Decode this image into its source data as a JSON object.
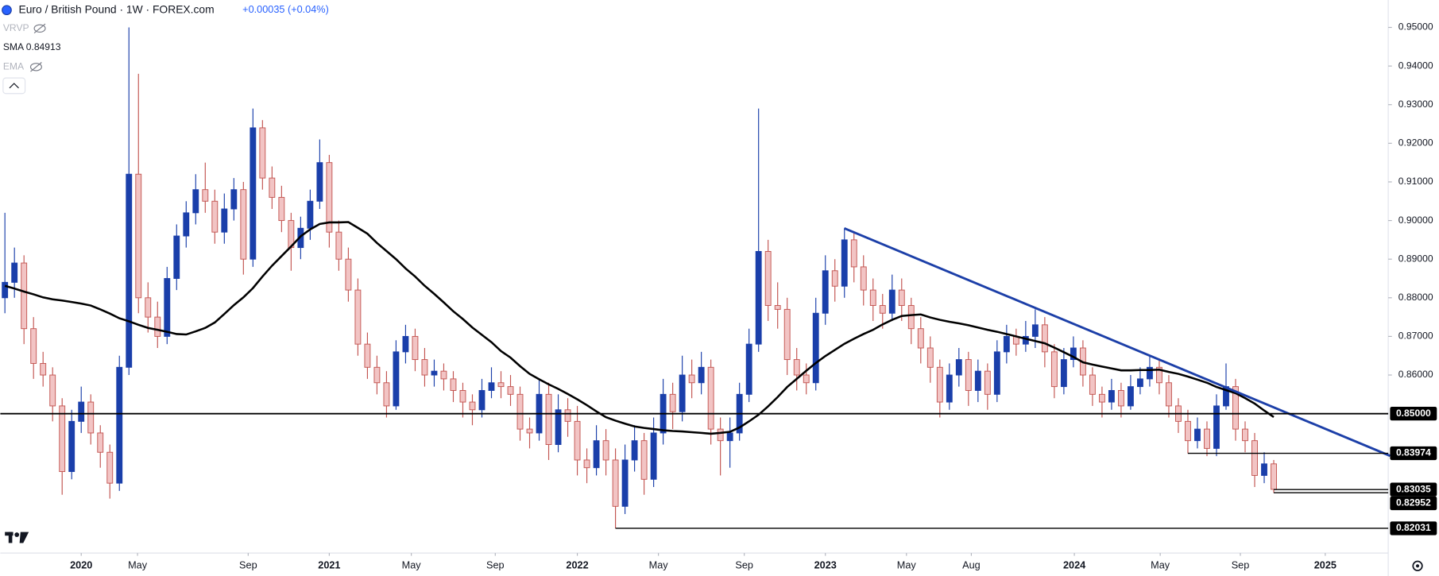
{
  "chart_data": {
    "type": "candlestick",
    "title": "Euro / British Pound · 1W · FOREX.com",
    "change": "+0.00035 (+0.04%)",
    "indicators": [
      "VRVP",
      "EMA"
    ],
    "up_color": "#1a3faa",
    "down_color": "#c25450",
    "sma": {
      "name": "SMA",
      "color": "#000000",
      "values": [
        0.8831,
        0.8824,
        0.8816,
        0.8809,
        0.8801,
        0.8796,
        0.8793,
        0.8789,
        0.8785,
        0.878,
        0.877,
        0.8759,
        0.8747,
        0.8739,
        0.873,
        0.8722,
        0.8717,
        0.8712,
        0.8706,
        0.8705,
        0.8713,
        0.8722,
        0.8736,
        0.8758,
        0.8781,
        0.8801,
        0.8825,
        0.8855,
        0.8883,
        0.8908,
        0.8933,
        0.8959,
        0.8977,
        0.8991,
        0.8995,
        0.8995,
        0.8996,
        0.8981,
        0.8966,
        0.8942,
        0.8921,
        0.89,
        0.8876,
        0.8855,
        0.8831,
        0.881,
        0.8788,
        0.8765,
        0.8745,
        0.8723,
        0.8704,
        0.8685,
        0.8662,
        0.8645,
        0.8623,
        0.8603,
        0.8589,
        0.8576,
        0.8564,
        0.8551,
        0.8537,
        0.8522,
        0.8506,
        0.8491,
        0.8482,
        0.8474,
        0.8467,
        0.8463,
        0.846,
        0.8457,
        0.8455,
        0.8454,
        0.8452,
        0.845,
        0.8448,
        0.845,
        0.8453,
        0.8464,
        0.848,
        0.8497,
        0.8519,
        0.8543,
        0.8569,
        0.859,
        0.8611,
        0.8631,
        0.8649,
        0.8665,
        0.8681,
        0.8694,
        0.8706,
        0.8717,
        0.8731,
        0.8743,
        0.8753,
        0.8755,
        0.8757,
        0.8749,
        0.8743,
        0.8738,
        0.8734,
        0.8729,
        0.8723,
        0.8717,
        0.8712,
        0.8706,
        0.87,
        0.8694,
        0.8688,
        0.8682,
        0.8671,
        0.8659,
        0.8647,
        0.8633,
        0.8627,
        0.8622,
        0.8617,
        0.8612,
        0.8612,
        0.8613,
        0.8613,
        0.8614,
        0.8608,
        0.8603,
        0.8596,
        0.8588,
        0.858,
        0.8569,
        0.8561,
        0.8553,
        0.854,
        0.8526,
        0.8508,
        0.84913
      ]
    },
    "candles": [
      [
        0.88,
        0.902,
        0.876,
        0.884
      ],
      [
        0.884,
        0.893,
        0.88,
        0.889
      ],
      [
        0.889,
        0.891,
        0.868,
        0.872
      ],
      [
        0.872,
        0.875,
        0.859,
        0.863
      ],
      [
        0.863,
        0.866,
        0.857,
        0.86
      ],
      [
        0.86,
        0.862,
        0.848,
        0.852
      ],
      [
        0.852,
        0.854,
        0.829,
        0.835
      ],
      [
        0.835,
        0.851,
        0.833,
        0.848
      ],
      [
        0.848,
        0.857,
        0.845,
        0.853
      ],
      [
        0.853,
        0.855,
        0.842,
        0.845
      ],
      [
        0.845,
        0.847,
        0.836,
        0.84
      ],
      [
        0.84,
        0.842,
        0.828,
        0.832
      ],
      [
        0.832,
        0.865,
        0.83,
        0.862
      ],
      [
        0.862,
        0.95,
        0.86,
        0.912
      ],
      [
        0.912,
        0.938,
        0.876,
        0.88
      ],
      [
        0.88,
        0.884,
        0.871,
        0.875
      ],
      [
        0.875,
        0.879,
        0.867,
        0.87
      ],
      [
        0.87,
        0.888,
        0.868,
        0.885
      ],
      [
        0.885,
        0.899,
        0.882,
        0.896
      ],
      [
        0.896,
        0.905,
        0.893,
        0.902
      ],
      [
        0.902,
        0.912,
        0.899,
        0.908
      ],
      [
        0.908,
        0.915,
        0.902,
        0.905
      ],
      [
        0.905,
        0.908,
        0.894,
        0.897
      ],
      [
        0.897,
        0.907,
        0.894,
        0.903
      ],
      [
        0.903,
        0.911,
        0.9,
        0.908
      ],
      [
        0.908,
        0.91,
        0.886,
        0.89
      ],
      [
        0.89,
        0.929,
        0.888,
        0.924
      ],
      [
        0.924,
        0.926,
        0.908,
        0.911
      ],
      [
        0.911,
        0.914,
        0.903,
        0.906
      ],
      [
        0.906,
        0.909,
        0.897,
        0.9
      ],
      [
        0.9,
        0.902,
        0.887,
        0.893
      ],
      [
        0.893,
        0.901,
        0.89,
        0.898
      ],
      [
        0.898,
        0.908,
        0.895,
        0.905
      ],
      [
        0.905,
        0.921,
        0.903,
        0.915
      ],
      [
        0.915,
        0.917,
        0.893,
        0.897
      ],
      [
        0.897,
        0.9,
        0.887,
        0.89
      ],
      [
        0.89,
        0.893,
        0.879,
        0.882
      ],
      [
        0.882,
        0.885,
        0.865,
        0.868
      ],
      [
        0.868,
        0.871,
        0.859,
        0.862
      ],
      [
        0.862,
        0.865,
        0.855,
        0.858
      ],
      [
        0.858,
        0.861,
        0.849,
        0.852
      ],
      [
        0.852,
        0.869,
        0.851,
        0.866
      ],
      [
        0.866,
        0.873,
        0.863,
        0.87
      ],
      [
        0.87,
        0.872,
        0.861,
        0.864
      ],
      [
        0.864,
        0.867,
        0.857,
        0.86
      ],
      [
        0.86,
        0.864,
        0.857,
        0.861
      ],
      [
        0.861,
        0.863,
        0.856,
        0.859
      ],
      [
        0.859,
        0.861,
        0.853,
        0.856
      ],
      [
        0.856,
        0.858,
        0.849,
        0.853
      ],
      [
        0.853,
        0.855,
        0.847,
        0.851
      ],
      [
        0.851,
        0.859,
        0.849,
        0.856
      ],
      [
        0.856,
        0.862,
        0.854,
        0.858
      ],
      [
        0.858,
        0.861,
        0.854,
        0.857
      ],
      [
        0.857,
        0.86,
        0.852,
        0.855
      ],
      [
        0.855,
        0.857,
        0.843,
        0.846
      ],
      [
        0.846,
        0.849,
        0.841,
        0.845
      ],
      [
        0.845,
        0.859,
        0.843,
        0.855
      ],
      [
        0.855,
        0.858,
        0.838,
        0.842
      ],
      [
        0.842,
        0.855,
        0.84,
        0.851
      ],
      [
        0.851,
        0.854,
        0.844,
        0.848
      ],
      [
        0.848,
        0.852,
        0.834,
        0.838
      ],
      [
        0.838,
        0.841,
        0.832,
        0.836
      ],
      [
        0.836,
        0.847,
        0.834,
        0.843
      ],
      [
        0.843,
        0.846,
        0.834,
        0.838
      ],
      [
        0.838,
        0.841,
        0.8203,
        0.826
      ],
      [
        0.826,
        0.842,
        0.824,
        0.838
      ],
      [
        0.838,
        0.847,
        0.835,
        0.843
      ],
      [
        0.843,
        0.845,
        0.829,
        0.833
      ],
      [
        0.833,
        0.849,
        0.831,
        0.845
      ],
      [
        0.845,
        0.859,
        0.842,
        0.855
      ],
      [
        0.855,
        0.858,
        0.846,
        0.8505
      ],
      [
        0.8505,
        0.865,
        0.848,
        0.86
      ],
      [
        0.86,
        0.864,
        0.854,
        0.858
      ],
      [
        0.858,
        0.866,
        0.855,
        0.862
      ],
      [
        0.862,
        0.864,
        0.842,
        0.846
      ],
      [
        0.846,
        0.849,
        0.834,
        0.843
      ],
      [
        0.843,
        0.849,
        0.836,
        0.845
      ],
      [
        0.845,
        0.858,
        0.843,
        0.855
      ],
      [
        0.855,
        0.872,
        0.853,
        0.868
      ],
      [
        0.868,
        0.929,
        0.866,
        0.892
      ],
      [
        0.892,
        0.895,
        0.874,
        0.878
      ],
      [
        0.878,
        0.884,
        0.872,
        0.877
      ],
      [
        0.877,
        0.88,
        0.86,
        0.864
      ],
      [
        0.864,
        0.867,
        0.856,
        0.86
      ],
      [
        0.86,
        0.863,
        0.855,
        0.858
      ],
      [
        0.858,
        0.88,
        0.856,
        0.876
      ],
      [
        0.876,
        0.891,
        0.873,
        0.887
      ],
      [
        0.887,
        0.89,
        0.879,
        0.883
      ],
      [
        0.883,
        0.898,
        0.88,
        0.895
      ],
      [
        0.895,
        0.897,
        0.884,
        0.888
      ],
      [
        0.888,
        0.891,
        0.878,
        0.882
      ],
      [
        0.882,
        0.885,
        0.874,
        0.878
      ],
      [
        0.878,
        0.881,
        0.872,
        0.876
      ],
      [
        0.876,
        0.886,
        0.874,
        0.882
      ],
      [
        0.882,
        0.885,
        0.874,
        0.878
      ],
      [
        0.878,
        0.88,
        0.868,
        0.872
      ],
      [
        0.872,
        0.875,
        0.863,
        0.867
      ],
      [
        0.867,
        0.87,
        0.858,
        0.862
      ],
      [
        0.862,
        0.864,
        0.849,
        0.853
      ],
      [
        0.853,
        0.863,
        0.851,
        0.86
      ],
      [
        0.86,
        0.867,
        0.857,
        0.864
      ],
      [
        0.864,
        0.866,
        0.852,
        0.856
      ],
      [
        0.856,
        0.864,
        0.853,
        0.861
      ],
      [
        0.861,
        0.863,
        0.851,
        0.855
      ],
      [
        0.855,
        0.869,
        0.853,
        0.866
      ],
      [
        0.866,
        0.873,
        0.863,
        0.87
      ],
      [
        0.87,
        0.872,
        0.865,
        0.868
      ],
      [
        0.868,
        0.874,
        0.866,
        0.87
      ],
      [
        0.87,
        0.877,
        0.867,
        0.873
      ],
      [
        0.873,
        0.875,
        0.862,
        0.866
      ],
      [
        0.866,
        0.868,
        0.854,
        0.857
      ],
      [
        0.857,
        0.867,
        0.855,
        0.864
      ],
      [
        0.864,
        0.87,
        0.862,
        0.867
      ],
      [
        0.867,
        0.869,
        0.857,
        0.86
      ],
      [
        0.86,
        0.862,
        0.852,
        0.855
      ],
      [
        0.855,
        0.857,
        0.849,
        0.853
      ],
      [
        0.853,
        0.859,
        0.851,
        0.856
      ],
      [
        0.856,
        0.858,
        0.849,
        0.852
      ],
      [
        0.852,
        0.86,
        0.851,
        0.857
      ],
      [
        0.857,
        0.862,
        0.855,
        0.859
      ],
      [
        0.859,
        0.865,
        0.857,
        0.862
      ],
      [
        0.862,
        0.864,
        0.855,
        0.858
      ],
      [
        0.858,
        0.86,
        0.849,
        0.852
      ],
      [
        0.852,
        0.854,
        0.845,
        0.848
      ],
      [
        0.848,
        0.851,
        0.8397,
        0.843
      ],
      [
        0.843,
        0.849,
        0.841,
        0.846
      ],
      [
        0.846,
        0.848,
        0.839,
        0.841
      ],
      [
        0.841,
        0.855,
        0.839,
        0.852
      ],
      [
        0.852,
        0.863,
        0.851,
        0.857
      ],
      [
        0.857,
        0.859,
        0.843,
        0.846
      ],
      [
        0.846,
        0.848,
        0.84,
        0.843
      ],
      [
        0.843,
        0.845,
        0.831,
        0.834
      ],
      [
        0.834,
        0.84,
        0.832,
        0.837
      ],
      [
        0.837,
        0.838,
        0.8295,
        0.8304
      ]
    ],
    "levels": [
      {
        "value": 0.85,
        "label": "0.85000"
      },
      0.83974,
      0.83035,
      0.82952,
      0.82031
    ],
    "ylim": [
      0.8139,
      0.9571
    ],
    "yticks": [
      {
        "value": 0.86,
        "label": "0.86000"
      },
      {
        "value": 0.87,
        "label": "0.87000"
      },
      {
        "value": 0.88,
        "label": "0.88000"
      },
      {
        "value": 0.89,
        "label": "0.89000"
      },
      {
        "value": 0.9,
        "label": "0.90000"
      },
      {
        "value": 0.91,
        "label": "0.91000"
      },
      {
        "value": 0.92,
        "label": "0.92000"
      },
      {
        "value": 0.93,
        "label": "0.93000"
      },
      {
        "value": 0.94,
        "label": "0.94000"
      },
      {
        "value": 0.95,
        "label": "0.95000"
      }
    ],
    "xticks": [
      {
        "value": 8,
        "label": "2020"
      },
      {
        "value": 13.9,
        "label": "May"
      },
      {
        "value": 25.5,
        "label": "Sep"
      },
      {
        "value": 34,
        "label": "2021"
      },
      {
        "value": 42.6,
        "label": "May"
      },
      {
        "value": 51.4,
        "label": "Sep"
      },
      {
        "value": 60,
        "label": "2022"
      },
      {
        "value": 68.5,
        "label": "May"
      },
      {
        "value": 77.5,
        "label": "Sep"
      },
      {
        "value": 86,
        "label": "2023"
      },
      {
        "value": 94.5,
        "label": "May"
      },
      {
        "value": 101.3,
        "label": "Aug"
      },
      {
        "value": 112.1,
        "label": "2024"
      },
      {
        "value": 121.1,
        "label": "May"
      },
      {
        "value": 129.5,
        "label": "Sep"
      },
      {
        "value": 138.4,
        "label": "2025"
      }
    ]
  }
}
